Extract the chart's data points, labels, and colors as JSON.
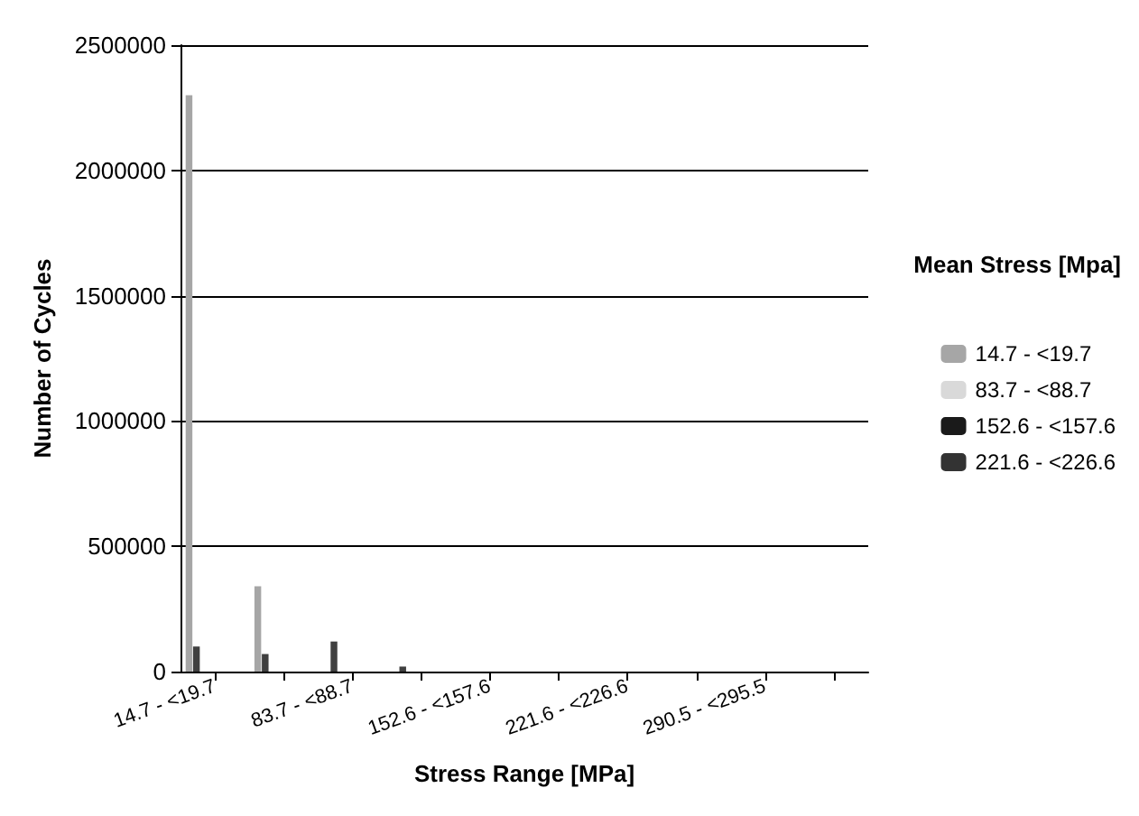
{
  "chart_data": {
    "type": "bar",
    "xlabel": "Stress Range [MPa]",
    "ylabel": "Number of Cycles",
    "legend_title": "Mean Stress [Mpa]",
    "categories": [
      "14.7 - <19.7",
      null,
      "83.7 - <88.7",
      null,
      "152.6 - <157.6",
      null,
      "221.6 - <226.6",
      null,
      "290.5 - <295.5",
      null
    ],
    "series": [
      {
        "name": "14.7 - <19.7",
        "color": "#a6a6a6",
        "values": [
          2300000,
          340000,
          0,
          0,
          0,
          0,
          0,
          0,
          0,
          0
        ]
      },
      {
        "color": "#404040",
        "values": [
          100000,
          70000,
          120000,
          20000,
          0,
          0,
          0,
          0,
          0,
          0
        ]
      },
      {
        "name": "83.7 - <88.7",
        "color": "#d9d9d9",
        "values": [
          0,
          0,
          0,
          0,
          0,
          0,
          0,
          0,
          0,
          0
        ]
      },
      {
        "color": "#7f7f7f",
        "values": [
          0,
          0,
          0,
          0,
          0,
          0,
          0,
          0,
          0,
          0
        ]
      },
      {
        "name": "152.6 - <157.6",
        "color": "#1a1a1a",
        "values": [
          0,
          0,
          0,
          0,
          0,
          0,
          0,
          0,
          0,
          0
        ]
      },
      {
        "color": "#595959",
        "values": [
          0,
          0,
          0,
          0,
          0,
          0,
          0,
          0,
          0,
          0
        ]
      },
      {
        "name": "221.6 - <226.6",
        "color": "#333333",
        "values": [
          0,
          0,
          0,
          0,
          0,
          0,
          0,
          0,
          0,
          0
        ]
      },
      {
        "color": "#bfbfbf",
        "values": [
          0,
          0,
          0,
          0,
          0,
          0,
          0,
          0,
          0,
          0
        ]
      }
    ],
    "ylim": [
      0,
      2500000
    ],
    "yticks": [
      0,
      500000,
      1000000,
      1500000,
      2000000,
      2500000
    ],
    "grid": "y",
    "legend": "right"
  }
}
